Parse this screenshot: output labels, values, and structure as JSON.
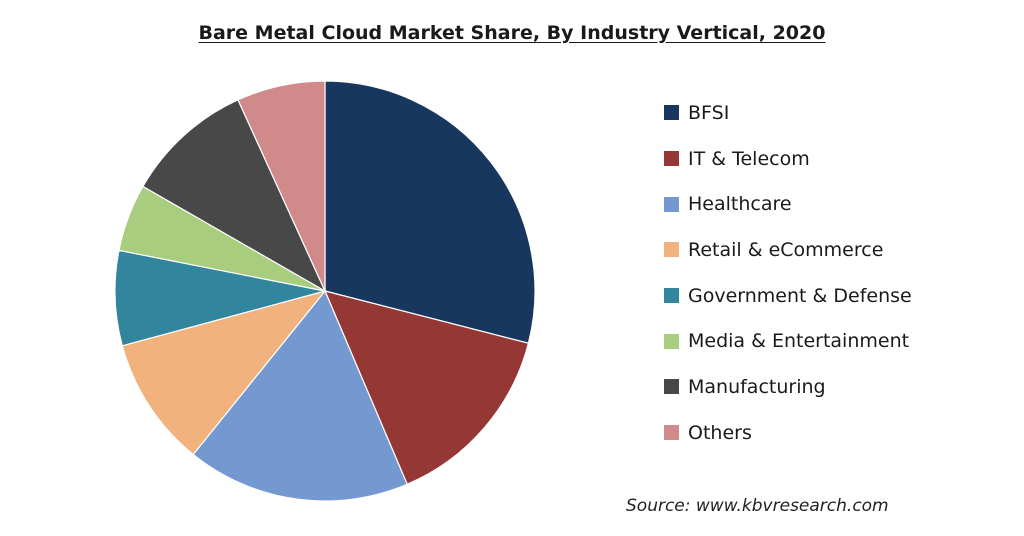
{
  "chart_data": {
    "type": "pie",
    "title": "Bare Metal Cloud Market Share, By Industry Vertical, 2020",
    "categories": [
      "BFSI",
      "IT & Telecom",
      "Healthcare",
      "Retail & eCommerce",
      "Government & Defense",
      "Media & Entertainment",
      "Manufacturing",
      "Others"
    ],
    "values": [
      29.0,
      14.6,
      17.2,
      10.0,
      7.3,
      5.2,
      9.9,
      6.8
    ],
    "colors": [
      "#17375e",
      "#953734",
      "#7399d0",
      "#f1b27e",
      "#31859c",
      "#a9cd7f",
      "#484848",
      "#d08a89"
    ],
    "legend_position": "right"
  },
  "source": "Source: www.kbvresearch.com"
}
